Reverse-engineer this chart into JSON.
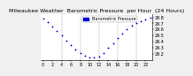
{
  "title": "Milwaukee Weather  Barometric Pressure  per Hour  (24 Hours)",
  "bg_color": "#f0f0f0",
  "plot_bg_color": "#ffffff",
  "line_color": "#0000dd",
  "legend_color": "#0000dd",
  "grid_color": "#888888",
  "title_color": "#000000",
  "hours": [
    0,
    1,
    2,
    3,
    4,
    5,
    6,
    7,
    8,
    9,
    10,
    11,
    12,
    13,
    14,
    15,
    16,
    17,
    18,
    19,
    20,
    21,
    22,
    23
  ],
  "pressure": [
    29.78,
    29.72,
    29.65,
    29.58,
    29.5,
    29.42,
    29.35,
    29.28,
    29.22,
    29.18,
    29.15,
    29.14,
    29.16,
    29.22,
    29.3,
    29.38,
    29.46,
    29.54,
    29.6,
    29.66,
    29.7,
    29.74,
    29.77,
    29.8
  ],
  "ylim_min": 29.1,
  "ylim_max": 29.85,
  "ytick_values": [
    29.2,
    29.3,
    29.4,
    29.5,
    29.6,
    29.7,
    29.8
  ],
  "xtick_values": [
    0,
    2,
    4,
    6,
    8,
    10,
    12,
    14,
    16,
    18,
    20,
    22
  ],
  "grid_x_positions": [
    4,
    8,
    12,
    16,
    20
  ],
  "marker_size": 1.8,
  "title_fontsize": 4.5,
  "tick_fontsize": 3.5,
  "legend_fontsize": 3.5,
  "legend_label": "Barometric Pressure"
}
